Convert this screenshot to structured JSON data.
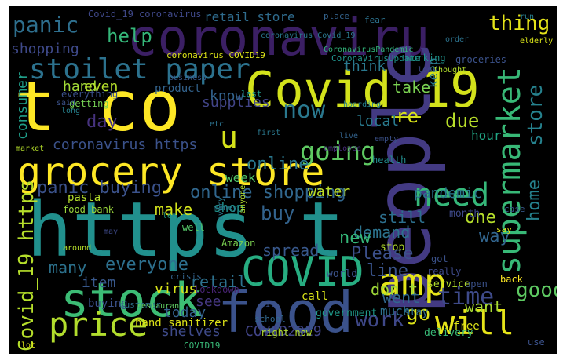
{
  "words": [
    {
      "text": "coronaviru",
      "color": "#3b1f64",
      "rot": 0
    },
    {
      "text": "t co",
      "color": "#fde725",
      "rot": 0
    },
    {
      "text": "https t",
      "color": "#21908d",
      "rot": 0
    },
    {
      "text": "grocery store",
      "color": "#fde725",
      "rot": 0
    },
    {
      "text": "Covid_19",
      "color": "#d3e21b",
      "rot": 0
    },
    {
      "text": "people",
      "color": "#433a83",
      "rot": -90
    },
    {
      "text": "food",
      "color": "#3b528b",
      "rot": 0
    },
    {
      "text": "COVID",
      "color": "#27ad81",
      "rot": 0
    },
    {
      "text": "stock",
      "color": "#3cbc75",
      "rot": 0
    },
    {
      "text": "amp",
      "color": "#e5e419",
      "rot": 0
    },
    {
      "text": "price",
      "color": "#b2dd2d",
      "rot": 0
    },
    {
      "text": "supermarket",
      "color": "#38b977",
      "rot": -90
    },
    {
      "text": "will",
      "color": "#e6e419",
      "rot": 0
    },
    {
      "text": "stoilet paper",
      "color": "#2c728e",
      "rot": 0
    },
    {
      "text": "need",
      "color": "#35b779",
      "rot": 0
    },
    {
      "text": "now",
      "color": "#2a788e",
      "rot": 0
    },
    {
      "text": "going",
      "color": "#5ec962",
      "rot": 0
    },
    {
      "text": "Covid_19 https",
      "color": "#b5de2b",
      "rot": -90
    },
    {
      "text": "online shopping",
      "color": "#31678e",
      "rot": 0
    },
    {
      "text": "everyone",
      "color": "#2d708e",
      "rot": 0
    },
    {
      "text": "time",
      "color": "#3e4a89",
      "rot": 0
    },
    {
      "text": "home",
      "color": "#26828e",
      "rot": -90
    },
    {
      "text": "store",
      "color": "#26828e",
      "rot": -90
    },
    {
      "text": "panic",
      "color": "#2e6f8e",
      "rot": 0
    },
    {
      "text": "shopping",
      "color": "#3e4989",
      "rot": 0
    },
    {
      "text": "help",
      "color": "#35b779",
      "rot": 0
    },
    {
      "text": "thing",
      "color": "#e5e419",
      "rot": 0
    },
    {
      "text": "go",
      "color": "#dde318",
      "rot": 0
    },
    {
      "text": "work",
      "color": "#3f4889",
      "rot": 0
    },
    {
      "text": "good",
      "color": "#5ec962",
      "rot": 0
    },
    {
      "text": "COVID2019",
      "color": "#414487",
      "rot": 0
    },
    {
      "text": "shelves",
      "color": "#3e4a89",
      "rot": 0
    },
    {
      "text": "today",
      "color": "#34618d",
      "rot": 0
    },
    {
      "text": "u",
      "color": "#d5e21a",
      "rot": 0
    },
    {
      "text": "day",
      "color": "#46327e",
      "rot": 0
    },
    {
      "text": "online",
      "color": "#2a788e",
      "rot": 0
    },
    {
      "text": "re",
      "color": "#d8e219",
      "rot": 0
    },
    {
      "text": "due",
      "color": "#b8de29",
      "rot": 0
    },
    {
      "text": "coronavirus https",
      "color": "#3b528b",
      "rot": 0
    },
    {
      "text": "panic buying",
      "color": "#3b528b",
      "rot": 0
    },
    {
      "text": "consumer",
      "color": "#1f9e89",
      "rot": -90
    },
    {
      "text": "supplies",
      "color": "#414487",
      "rot": 0
    },
    {
      "text": "local",
      "color": "#297a8e",
      "rot": 0
    },
    {
      "text": "water",
      "color": "#bddf26",
      "rot": 0
    },
    {
      "text": "pandemic",
      "color": "#2a788e",
      "rot": 0
    },
    {
      "text": "retail store",
      "color": "#2f6c8e",
      "rot": 0
    },
    {
      "text": "Covid_19 coronavirus",
      "color": "#3f4889",
      "rot": 0
    },
    {
      "text": "make",
      "color": "#d2e21b",
      "rot": 0
    },
    {
      "text": "buy",
      "color": "#33638d",
      "rot": 0
    },
    {
      "text": "one",
      "color": "#b5de2b",
      "rot": 0
    },
    {
      "text": "way",
      "color": "#32658e",
      "rot": 0
    },
    {
      "text": "demand",
      "color": "#2c738e",
      "rot": 0
    },
    {
      "text": "new",
      "color": "#35b779",
      "rot": 0
    },
    {
      "text": "Please",
      "color": "#3c508b",
      "rot": 0
    },
    {
      "text": "spread",
      "color": "#38588c",
      "rot": 0
    },
    {
      "text": "still",
      "color": "#2d708e",
      "rot": 0
    },
    {
      "text": "line",
      "color": "#3a548c",
      "rot": 0
    },
    {
      "text": "don t",
      "color": "#a0da39",
      "rot": 0
    },
    {
      "text": "went",
      "color": "#31668e",
      "rot": 0
    },
    {
      "text": "want",
      "color": "#a8db34",
      "rot": 0
    },
    {
      "text": "many",
      "color": "#2c728e",
      "rot": 0
    },
    {
      "text": "item",
      "color": "#38588c",
      "rot": 0
    },
    {
      "text": "retail",
      "color": "#2d718e",
      "rot": 0
    },
    {
      "text": "virus",
      "color": "#d8e219",
      "rot": 0
    },
    {
      "text": "see",
      "color": "#453781",
      "rot": 0
    },
    {
      "text": "hand",
      "color": "#a2da37",
      "rot": 0
    },
    {
      "text": "even",
      "color": "#b5de2b",
      "rot": 0
    },
    {
      "text": "think",
      "color": "#2a788e",
      "rot": 0
    },
    {
      "text": "take",
      "color": "#7ad151",
      "rot": 0
    },
    {
      "text": "keep",
      "color": "#297b8e",
      "rot": -90
    },
    {
      "text": "know",
      "color": "#33638d",
      "rot": 0
    },
    {
      "text": "week",
      "color": "#52c569",
      "rot": 0
    },
    {
      "text": "hour",
      "color": "#21a685",
      "rot": 0
    },
    {
      "text": "shop",
      "color": "#21918c",
      "rot": 0
    },
    {
      "text": "hand sanitizer",
      "color": "#dde318",
      "rot": 0
    },
    {
      "text": "crisis",
      "color": "#33638d",
      "rot": 0
    },
    {
      "text": "lockdown",
      "color": "#482475",
      "rot": 0
    },
    {
      "text": "Amazon",
      "color": "#7ad151",
      "rot": 0
    },
    {
      "text": "food bank",
      "color": "#9bd93c",
      "rot": 0
    },
    {
      "text": "buying",
      "color": "#3b528b",
      "rot": 0
    },
    {
      "text": "customer",
      "color": "#2d718e",
      "rot": 0
    },
    {
      "text": "COVID19",
      "color": "#38b977",
      "rot": 0
    },
    {
      "text": "school",
      "color": "#31688e",
      "rot": 0
    },
    {
      "text": "right now",
      "color": "#b2dd2d",
      "rot": 0
    },
    {
      "text": "let",
      "color": "#1fa088",
      "rot": 0
    },
    {
      "text": "well",
      "color": "#54c568",
      "rot": 0
    },
    {
      "text": "health",
      "color": "#228c8d",
      "rot": 0
    },
    {
      "text": "employee",
      "color": "#472c7a",
      "rot": 0
    },
    {
      "text": "coronavirus COVID19",
      "color": "#dde318",
      "rot": 0
    },
    {
      "text": "coronavirus Covid_19",
      "color": "#2a788e",
      "rot": 0
    },
    {
      "text": "CoronaVirusUpdate",
      "color": "#20938c",
      "rot": 0
    },
    {
      "text": "CoronavirusPandemic",
      "color": "#31b57b",
      "rot": 0
    },
    {
      "text": "groceries",
      "color": "#3b528b",
      "rot": 0
    },
    {
      "text": "working",
      "color": "#1f948c",
      "rot": 0
    },
    {
      "text": "elderly",
      "color": "#d8e219",
      "rot": 0
    },
    {
      "text": "order",
      "color": "#2c738e",
      "rot": 0
    },
    {
      "text": "fear",
      "color": "#2c728e",
      "rot": 0
    },
    {
      "text": "place",
      "color": "#33638d",
      "rot": 0
    },
    {
      "text": "run",
      "color": "#277f8e",
      "rot": 0
    },
    {
      "text": "product",
      "color": "#33638d",
      "rot": 0
    },
    {
      "text": "business",
      "color": "#38588c",
      "rot": 0
    },
    {
      "text": "everything",
      "color": "#3b528b",
      "rot": 0
    },
    {
      "text": "getting",
      "color": "#75d054",
      "rot": 0
    },
    {
      "text": "last",
      "color": "#1f9a8a",
      "rot": 0
    },
    {
      "text": "said",
      "color": "#3b528b",
      "rot": 0
    },
    {
      "text": "long",
      "color": "#26828e",
      "rot": 0
    },
    {
      "text": "etc",
      "color": "#2c728e",
      "rot": 0
    },
    {
      "text": "market",
      "color": "#b5de2b",
      "rot": 0
    },
    {
      "text": "first",
      "color": "#2a788e",
      "rot": 0
    },
    {
      "text": "live",
      "color": "#33638d",
      "rot": 0
    },
    {
      "text": "look",
      "color": "#3e4989",
      "rot": 0
    },
    {
      "text": "thought",
      "color": "#b2dd2d",
      "rot": 0
    },
    {
      "text": "hoarding",
      "color": "#26828e",
      "rot": 0
    },
    {
      "text": "empty",
      "color": "#3b528b",
      "rot": 0
    },
    {
      "text": "stay",
      "color": "#2e6e8e",
      "rot": 0
    },
    {
      "text": "government",
      "color": "#1f9a8a",
      "rot": 0
    },
    {
      "text": "call",
      "color": "#d8e219",
      "rot": 0
    },
    {
      "text": "much",
      "color": "#2d708e",
      "rot": 0
    },
    {
      "text": "delivery",
      "color": "#38b977",
      "rot": 0
    },
    {
      "text": "free",
      "color": "#dde318",
      "rot": 0
    },
    {
      "text": "use",
      "color": "#3b528b",
      "rot": 0
    },
    {
      "text": "back",
      "color": "#fde725",
      "rot": 0
    },
    {
      "text": "really",
      "color": "#3e4a89",
      "rot": 0
    },
    {
      "text": "service",
      "color": "#b2dd2d",
      "rot": 0
    },
    {
      "text": "open",
      "color": "#3b528b",
      "rot": 0
    },
    {
      "text": "say",
      "color": "#dde318",
      "rot": 0
    },
    {
      "text": "case",
      "color": "#38588c",
      "rot": 0
    },
    {
      "text": "month",
      "color": "#3e4989",
      "rot": 0
    },
    {
      "text": "got",
      "color": "#3b528b",
      "rot": 0
    },
    {
      "text": "stop",
      "color": "#b2dd2d",
      "rot": 0
    },
    {
      "text": "pasta",
      "color": "#b5de2b",
      "rot": 0
    },
    {
      "text": "world",
      "color": "#3b528b",
      "rot": 0
    },
    {
      "text": "lot",
      "color": "#dde318",
      "rot": 0
    },
    {
      "text": "may",
      "color": "#3e4a89",
      "rot": 0
    },
    {
      "text": "around",
      "color": "#b5de2b",
      "rot": 0
    },
    {
      "text": "oil",
      "color": "#3b528b",
      "rot": 0
    },
    {
      "text": "anyone",
      "color": "#b2dd2d",
      "rot": -90
    },
    {
      "text": "every",
      "color": "#2a788e",
      "rot": -90
    },
    {
      "text": "restaurant",
      "color": "#5ec962",
      "rot": 0
    },
    {
      "text": "money",
      "color": "#2a788e",
      "rot": 0
    }
  ]
}
